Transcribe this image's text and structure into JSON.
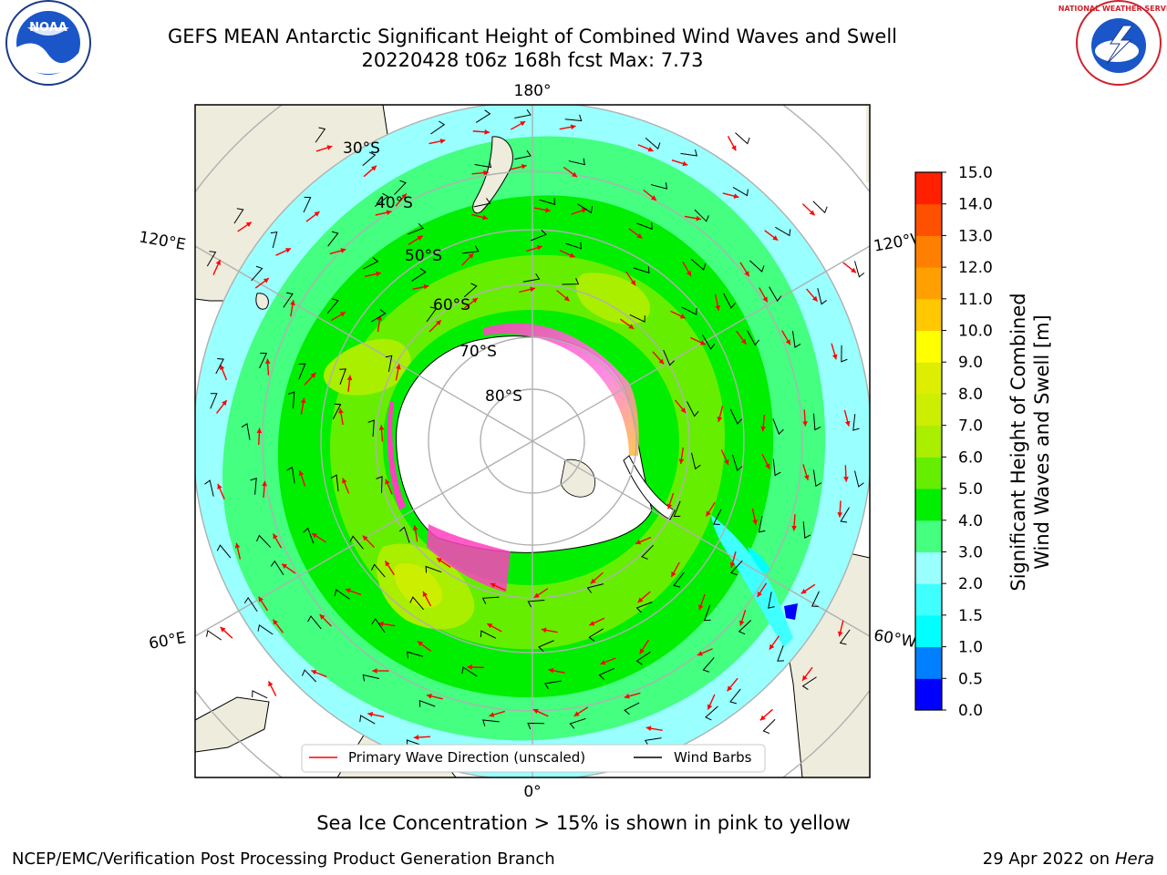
{
  "header": {
    "title_line1": "GEFS MEAN Antarctic Significant Height of Combined Wind Waves and Swell",
    "title_line2": "20220428 t06z 168h fcst   Max: 7.73"
  },
  "logos": {
    "left_text": "NOAA",
    "right_text": "NATIONAL WEATHER SERVICE"
  },
  "map": {
    "lon_labels": {
      "top": "180°",
      "bottom": "0°",
      "left_upper": "120°E",
      "left_lower": "60°E",
      "right_upper": "120°W",
      "right_lower": "60°W"
    },
    "lat_labels": [
      "30°S",
      "40°S",
      "50°S",
      "60°S",
      "70°S",
      "80°S"
    ],
    "legend": {
      "wave_label": "Primary Wave Direction (unscaled)",
      "barb_label": "Wind Barbs",
      "wave_color": "#ff0000",
      "barb_color": "#000000"
    },
    "colors": {
      "land": "#eeecdc",
      "ocean_base": "#99ffff",
      "ice": "#ffffff",
      "sea_ice": "#ff40c0"
    }
  },
  "colorbar": {
    "label_line1": "Significant Height of Combined",
    "label_line2": "Wind Waves and Swell [m]",
    "levels": [
      "0.0",
      "0.5",
      "1.0",
      "1.5",
      "2.0",
      "3.0",
      "4.0",
      "5.0",
      "6.0",
      "7.0",
      "8.0",
      "9.0",
      "10.0",
      "11.0",
      "12.0",
      "13.0",
      "14.0",
      "15.0"
    ],
    "colors": [
      "#0000ff",
      "#0080ff",
      "#00ffff",
      "#40ffff",
      "#99ffff",
      "#44ff80",
      "#00ee00",
      "#66ee00",
      "#aaee00",
      "#ccee00",
      "#ddee00",
      "#ffff00",
      "#ffc800",
      "#ffa000",
      "#ff8000",
      "#ff5000",
      "#ff2000"
    ]
  },
  "footer": {
    "caption": "Sea Ice Concentration > 15% is shown in pink to yellow",
    "credit": "NCEP/EMC/Verification Post Processing Product Generation Branch",
    "date_prefix": "29 Apr 2022 on ",
    "date_host": "Hera"
  }
}
